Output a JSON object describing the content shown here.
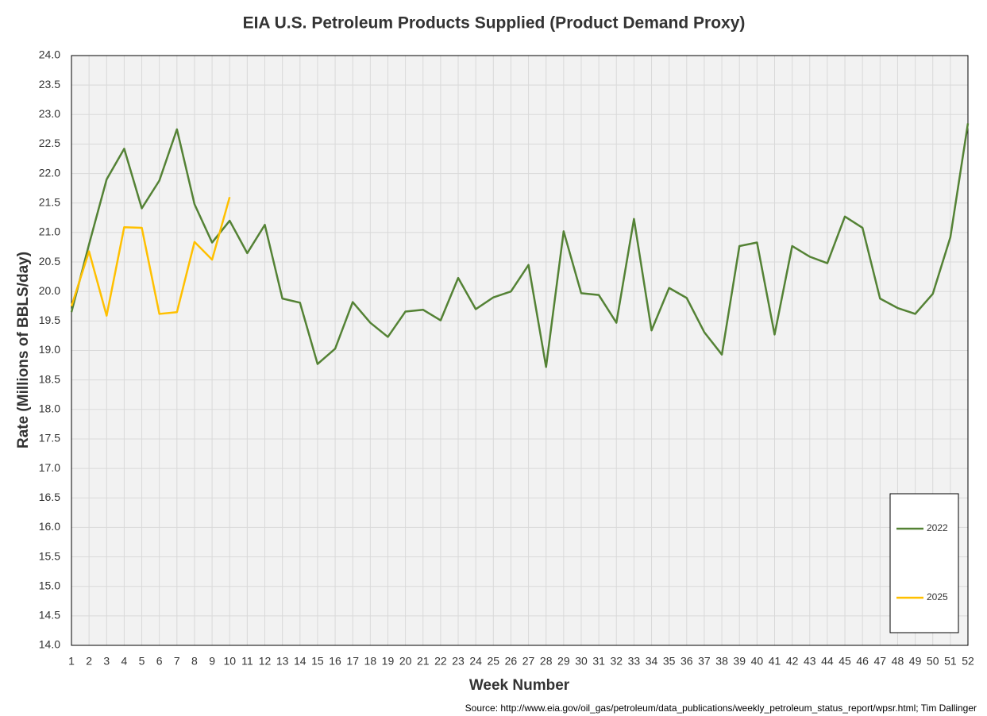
{
  "chart_data": {
    "type": "line",
    "title": "EIA U.S. Petroleum Products Supplied (Product Demand Proxy)",
    "x_label": "Week Number",
    "y_label": "Rate (Millions of BBLS/day)",
    "source": "Source: http://www.eia.gov/oil_gas/petroleum/data_publications/weekly_petroleum_status_report/wpsr.html; Tim Dallinger",
    "x": [
      1,
      2,
      3,
      4,
      5,
      6,
      7,
      8,
      9,
      10,
      11,
      12,
      13,
      14,
      15,
      16,
      17,
      18,
      19,
      20,
      21,
      22,
      23,
      24,
      25,
      26,
      27,
      28,
      29,
      30,
      31,
      32,
      33,
      34,
      35,
      36,
      37,
      38,
      39,
      40,
      41,
      42,
      43,
      44,
      45,
      46,
      47,
      48,
      49,
      50,
      51,
      52
    ],
    "xlim": [
      1,
      52
    ],
    "xticks": [
      1,
      2,
      3,
      4,
      5,
      6,
      7,
      8,
      9,
      10,
      11,
      12,
      13,
      14,
      15,
      16,
      17,
      18,
      19,
      20,
      21,
      22,
      23,
      24,
      25,
      26,
      27,
      28,
      29,
      30,
      31,
      32,
      33,
      34,
      35,
      36,
      37,
      38,
      39,
      40,
      41,
      42,
      43,
      44,
      45,
      46,
      47,
      48,
      49,
      50,
      51,
      52
    ],
    "ylim": [
      14,
      24
    ],
    "yticks": [
      {
        "value": 14,
        "label": "14.0"
      },
      14.5,
      {
        "value": 15,
        "label": "15.0"
      },
      15.5,
      {
        "value": 16,
        "label": "16.0"
      },
      16.5,
      {
        "value": 17,
        "label": "17.0"
      },
      17.5,
      {
        "value": 18,
        "label": "18.0"
      },
      18.5,
      {
        "value": 19,
        "label": "19.0"
      },
      19.5,
      {
        "value": 20,
        "label": "20.0"
      },
      20.5,
      {
        "value": 21,
        "label": "21.0"
      },
      21.5,
      {
        "value": 22,
        "label": "22.0"
      },
      22.5,
      {
        "value": 23,
        "label": "23.0"
      },
      23.5,
      {
        "value": 24,
        "label": "24.0"
      }
    ],
    "grid": true,
    "legend": "lower right",
    "series": [
      {
        "name": "2022",
        "color": "#548235",
        "values": [
          19.65,
          20.8,
          21.9,
          22.42,
          21.41,
          21.88,
          22.75,
          21.48,
          20.83,
          21.2,
          20.65,
          21.13,
          19.88,
          19.81,
          18.77,
          19.03,
          19.82,
          19.47,
          19.23,
          19.66,
          19.69,
          19.51,
          20.23,
          19.7,
          19.9,
          20.0,
          20.45,
          18.72,
          21.02,
          19.97,
          19.94,
          19.47,
          21.23,
          19.34,
          20.06,
          19.89,
          19.31,
          18.93,
          20.77,
          20.83,
          19.27,
          20.77,
          20.59,
          20.48,
          21.27,
          21.08,
          19.88,
          19.72,
          19.62,
          19.96,
          20.92,
          22.85
        ]
      },
      {
        "name": "2025",
        "color": "#ffc000",
        "values": [
          19.75,
          20.68,
          19.59,
          21.09,
          21.08,
          19.62,
          19.65,
          20.84,
          20.54,
          21.6,
          null,
          null,
          null,
          null,
          null,
          null,
          null,
          null,
          null,
          null,
          null,
          null,
          null,
          null,
          null,
          null,
          null,
          null,
          null,
          null,
          null,
          null,
          null,
          null,
          null,
          null,
          null,
          null,
          null,
          null,
          null,
          null,
          null,
          null,
          null,
          null,
          null,
          null,
          null,
          null,
          null,
          null
        ]
      }
    ]
  }
}
